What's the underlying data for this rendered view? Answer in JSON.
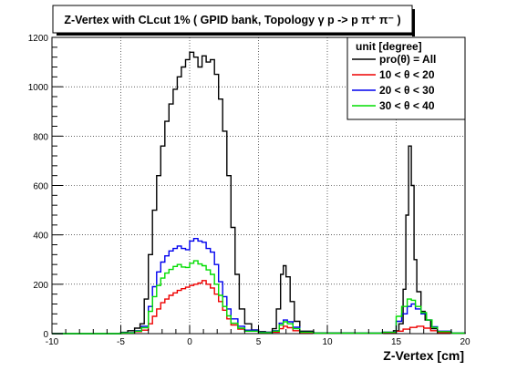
{
  "chart_data": {
    "type": "line",
    "title": "Z-Vertex with CLcut 1% ( GPID bank, Topology γ p -> p π⁺ π⁻ )",
    "xlabel": "Z-Vertex [cm]",
    "ylabel": "",
    "xlim": [
      -10,
      20
    ],
    "ylim": [
      0,
      1200
    ],
    "x_ticks": [
      -10,
      -5,
      0,
      5,
      10,
      15,
      20
    ],
    "y_ticks": [
      0,
      200,
      400,
      600,
      800,
      1000,
      1200
    ],
    "grid": true,
    "legend_title": "unit [degree]",
    "legend_position": "top-right",
    "series": [
      {
        "name": "pro(θ) = All",
        "color": "#000000",
        "points": [
          [
            -10,
            0
          ],
          [
            -6,
            0
          ],
          [
            -5,
            5
          ],
          [
            -4.5,
            12
          ],
          [
            -4,
            22
          ],
          [
            -3.6,
            40
          ],
          [
            -3.3,
            140
          ],
          [
            -3.0,
            320
          ],
          [
            -2.7,
            500
          ],
          [
            -2.4,
            640
          ],
          [
            -2.1,
            760
          ],
          [
            -1.8,
            860
          ],
          [
            -1.5,
            930
          ],
          [
            -1.2,
            990
          ],
          [
            -0.9,
            1040
          ],
          [
            -0.6,
            1080
          ],
          [
            -0.3,
            1110
          ],
          [
            0,
            1140
          ],
          [
            0.3,
            1120
          ],
          [
            0.6,
            1080
          ],
          [
            0.9,
            1125
          ],
          [
            1.2,
            1100
          ],
          [
            1.5,
            1110
          ],
          [
            1.8,
            1050
          ],
          [
            2.1,
            950
          ],
          [
            2.4,
            820
          ],
          [
            2.7,
            640
          ],
          [
            3.0,
            430
          ],
          [
            3.3,
            240
          ],
          [
            3.6,
            100
          ],
          [
            4.0,
            40
          ],
          [
            4.5,
            15
          ],
          [
            5.0,
            8
          ],
          [
            5.5,
            6
          ],
          [
            6.0,
            20
          ],
          [
            6.3,
            100
          ],
          [
            6.6,
            240
          ],
          [
            6.8,
            275
          ],
          [
            7.0,
            230
          ],
          [
            7.3,
            130
          ],
          [
            7.6,
            50
          ],
          [
            8.0,
            10
          ],
          [
            9,
            3
          ],
          [
            12,
            2
          ],
          [
            14,
            5
          ],
          [
            14.8,
            12
          ],
          [
            15.2,
            40
          ],
          [
            15.5,
            180
          ],
          [
            15.7,
            480
          ],
          [
            15.9,
            760
          ],
          [
            16.1,
            600
          ],
          [
            16.3,
            300
          ],
          [
            16.5,
            170
          ],
          [
            16.8,
            90
          ],
          [
            17.1,
            55
          ],
          [
            17.5,
            20
          ],
          [
            18,
            5
          ],
          [
            19,
            2
          ],
          [
            20,
            0
          ]
        ]
      },
      {
        "name": "10 < θ < 20",
        "color": "#ee0000",
        "points": [
          [
            -10,
            0
          ],
          [
            -6,
            0
          ],
          [
            -5,
            3
          ],
          [
            -4,
            8
          ],
          [
            -3.5,
            14
          ],
          [
            -3.0,
            40
          ],
          [
            -2.7,
            70
          ],
          [
            -2.4,
            100
          ],
          [
            -2.1,
            125
          ],
          [
            -1.8,
            140
          ],
          [
            -1.5,
            155
          ],
          [
            -1.2,
            165
          ],
          [
            -0.9,
            175
          ],
          [
            -0.6,
            182
          ],
          [
            -0.3,
            188
          ],
          [
            0,
            195
          ],
          [
            0.3,
            200
          ],
          [
            0.6,
            205
          ],
          [
            0.9,
            215
          ],
          [
            1.2,
            200
          ],
          [
            1.5,
            185
          ],
          [
            1.8,
            160
          ],
          [
            2.1,
            130
          ],
          [
            2.4,
            95
          ],
          [
            2.7,
            60
          ],
          [
            3.0,
            35
          ],
          [
            3.5,
            18
          ],
          [
            4,
            10
          ],
          [
            5,
            4
          ],
          [
            6,
            6
          ],
          [
            6.5,
            20
          ],
          [
            6.8,
            30
          ],
          [
            7.1,
            24
          ],
          [
            7.5,
            12
          ],
          [
            8,
            3
          ],
          [
            9,
            1
          ],
          [
            14,
            4
          ],
          [
            15,
            10
          ],
          [
            15.5,
            18
          ],
          [
            16,
            25
          ],
          [
            16.5,
            30
          ],
          [
            17,
            22
          ],
          [
            17.5,
            12
          ],
          [
            18,
            4
          ],
          [
            19,
            1
          ],
          [
            20,
            0
          ]
        ]
      },
      {
        "name": "20 < θ < 30",
        "color": "#0000ee",
        "points": [
          [
            -10,
            0
          ],
          [
            -6,
            0
          ],
          [
            -5,
            4
          ],
          [
            -4,
            12
          ],
          [
            -3.5,
            30
          ],
          [
            -3.0,
            110
          ],
          [
            -2.7,
            190
          ],
          [
            -2.4,
            250
          ],
          [
            -2.1,
            290
          ],
          [
            -1.8,
            315
          ],
          [
            -1.5,
            335
          ],
          [
            -1.2,
            345
          ],
          [
            -0.9,
            355
          ],
          [
            -0.6,
            345
          ],
          [
            -0.3,
            340
          ],
          [
            0,
            375
          ],
          [
            0.3,
            385
          ],
          [
            0.6,
            375
          ],
          [
            0.9,
            370
          ],
          [
            1.2,
            345
          ],
          [
            1.5,
            330
          ],
          [
            1.8,
            280
          ],
          [
            2.1,
            210
          ],
          [
            2.4,
            150
          ],
          [
            2.7,
            100
          ],
          [
            3.0,
            60
          ],
          [
            3.5,
            30
          ],
          [
            4,
            14
          ],
          [
            5,
            5
          ],
          [
            6,
            12
          ],
          [
            6.5,
            42
          ],
          [
            6.8,
            55
          ],
          [
            7.1,
            48
          ],
          [
            7.5,
            26
          ],
          [
            8,
            6
          ],
          [
            9,
            2
          ],
          [
            14,
            6
          ],
          [
            15,
            50
          ],
          [
            15.4,
            80
          ],
          [
            15.8,
            110
          ],
          [
            16.1,
            120
          ],
          [
            16.4,
            100
          ],
          [
            16.8,
            80
          ],
          [
            17.2,
            55
          ],
          [
            17.6,
            28
          ],
          [
            18,
            10
          ],
          [
            19,
            2
          ],
          [
            20,
            0
          ]
        ]
      },
      {
        "name": "30 < θ < 40",
        "color": "#00dd00",
        "points": [
          [
            -10,
            0
          ],
          [
            -6,
            0
          ],
          [
            -5,
            3
          ],
          [
            -4,
            10
          ],
          [
            -3.5,
            24
          ],
          [
            -3.0,
            90
          ],
          [
            -2.7,
            150
          ],
          [
            -2.4,
            195
          ],
          [
            -2.1,
            225
          ],
          [
            -1.8,
            245
          ],
          [
            -1.5,
            260
          ],
          [
            -1.2,
            272
          ],
          [
            -0.9,
            280
          ],
          [
            -0.6,
            270
          ],
          [
            -0.3,
            268
          ],
          [
            0,
            285
          ],
          [
            0.3,
            295
          ],
          [
            0.6,
            282
          ],
          [
            0.9,
            275
          ],
          [
            1.2,
            258
          ],
          [
            1.5,
            240
          ],
          [
            1.8,
            200
          ],
          [
            2.1,
            155
          ],
          [
            2.4,
            110
          ],
          [
            2.7,
            72
          ],
          [
            3.0,
            42
          ],
          [
            3.5,
            22
          ],
          [
            4,
            10
          ],
          [
            5,
            4
          ],
          [
            6,
            10
          ],
          [
            6.5,
            35
          ],
          [
            6.8,
            48
          ],
          [
            7.1,
            40
          ],
          [
            7.5,
            20
          ],
          [
            8,
            5
          ],
          [
            9,
            2
          ],
          [
            14,
            5
          ],
          [
            15,
            70
          ],
          [
            15.4,
            110
          ],
          [
            15.8,
            140
          ],
          [
            16.1,
            135
          ],
          [
            16.4,
            110
          ],
          [
            16.8,
            85
          ],
          [
            17.2,
            55
          ],
          [
            17.6,
            25
          ],
          [
            18,
            8
          ],
          [
            19,
            2
          ],
          [
            20,
            0
          ]
        ]
      }
    ]
  }
}
